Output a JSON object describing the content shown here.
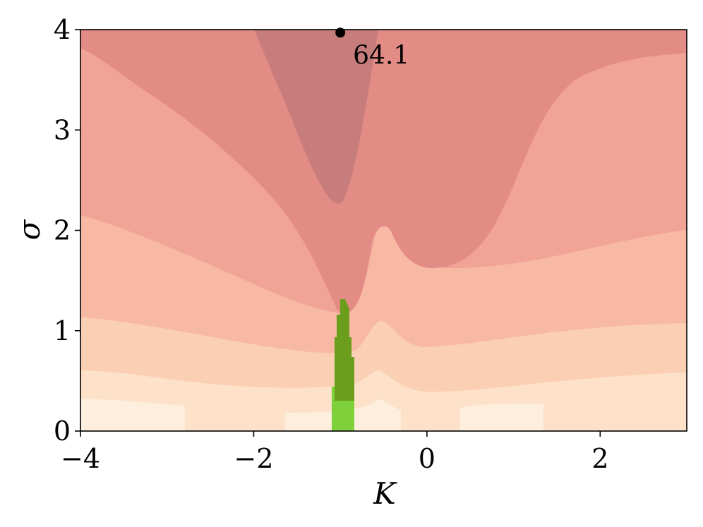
{
  "chart_data": {
    "type": "contour",
    "xlabel": "K",
    "ylabel": "σ",
    "xlim": [
      -4,
      3
    ],
    "ylim": [
      0,
      4
    ],
    "x_ticks": [
      -4,
      -2,
      0,
      2
    ],
    "x_tick_labels": [
      "−4",
      "−2",
      "0",
      "2"
    ],
    "y_ticks": [
      0,
      1,
      2,
      3,
      4
    ],
    "y_tick_labels": [
      "0",
      "1",
      "2",
      "3",
      "4"
    ],
    "grid": false,
    "levels": [
      {
        "color": "#fdeedd"
      },
      {
        "color": "#fde1c8"
      },
      {
        "color": "#fbcfb4"
      },
      {
        "color": "#f8b9a4"
      },
      {
        "color": "#f0a396"
      },
      {
        "color": "#e38b85"
      },
      {
        "color": "#c77d7b"
      }
    ],
    "feasible_region_colors": [
      "#7ed13a",
      "#6b9e1d"
    ],
    "max_marker": {
      "x": -1.0,
      "y": 3.97,
      "label": "64.1"
    }
  }
}
